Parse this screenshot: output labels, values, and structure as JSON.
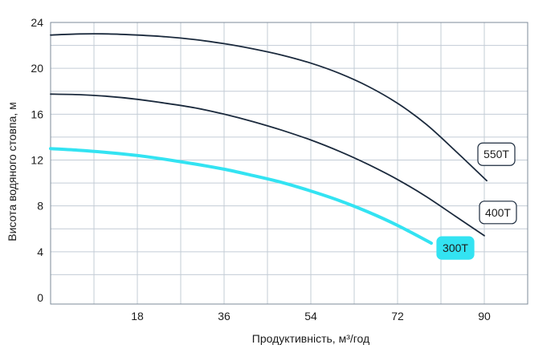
{
  "chart_data": {
    "type": "line",
    "xlabel": "Продуктивність, м³/год",
    "ylabel": "Висота водяного стовпа, м",
    "xlim": [
      0,
      99
    ],
    "ylim": [
      0,
      24
    ],
    "x_ticks": [
      "18",
      "36",
      "54",
      "72",
      "90"
    ],
    "y_ticks": [
      "0",
      "4",
      "8",
      "12",
      "16",
      "20",
      "24"
    ],
    "grid": true,
    "series": [
      {
        "name": "550T",
        "color": "#1b2a3d",
        "label_style": "white-box",
        "x": [
          0,
          6,
          12,
          18,
          24,
          30,
          36,
          42,
          48,
          54,
          60,
          66,
          72,
          78,
          84,
          90.5
        ],
        "y": [
          22.9,
          23.0,
          23.0,
          22.9,
          22.75,
          22.5,
          22.15,
          21.7,
          21.15,
          20.45,
          19.55,
          18.4,
          16.95,
          15.1,
          12.8,
          10.2
        ]
      },
      {
        "name": "400T",
        "color": "#1b2a3d",
        "label_style": "white-box",
        "x": [
          0,
          6,
          12,
          18,
          24,
          30,
          36,
          42,
          48,
          54,
          60,
          66,
          72,
          78,
          84,
          90
        ],
        "y": [
          17.75,
          17.7,
          17.55,
          17.3,
          16.95,
          16.55,
          16.0,
          15.35,
          14.6,
          13.75,
          12.75,
          11.6,
          10.3,
          8.8,
          7.1,
          5.4
        ]
      },
      {
        "name": "300T",
        "color": "#33e3f2",
        "label_style": "cyan-box",
        "x": [
          0,
          6,
          12,
          18,
          24,
          30,
          36,
          42,
          48,
          54,
          60,
          66,
          72,
          79
        ],
        "y": [
          13.0,
          12.85,
          12.65,
          12.4,
          12.05,
          11.65,
          11.2,
          10.65,
          10.05,
          9.3,
          8.45,
          7.45,
          6.3,
          4.75
        ]
      }
    ]
  }
}
